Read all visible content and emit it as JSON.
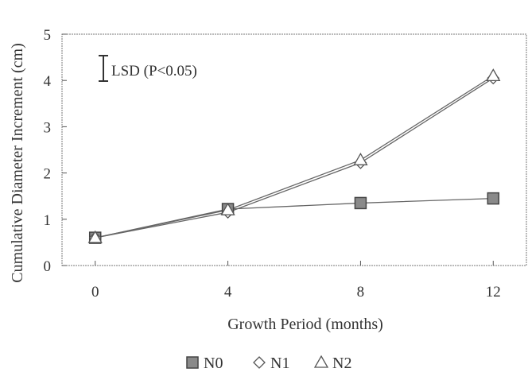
{
  "chart_data": {
    "type": "line",
    "xlabel": "Growth Period (months)",
    "ylabel": "Cumulative Diameter Increment (cm)",
    "x": [
      0,
      4,
      8,
      12
    ],
    "xticks": [
      "0",
      "4",
      "8",
      "12"
    ],
    "yticks": [
      "0",
      "1",
      "2",
      "3",
      "4",
      "5"
    ],
    "xlim": [
      -1,
      13
    ],
    "ylim": [
      0,
      5
    ],
    "grid": false,
    "legend_position": "bottom",
    "series": [
      {
        "name": "N0",
        "marker": "square",
        "values": [
          0.6,
          1.22,
          1.35,
          1.45
        ]
      },
      {
        "name": "N1",
        "marker": "diamond",
        "values": [
          0.6,
          1.15,
          2.22,
          4.05
        ]
      },
      {
        "name": "N2",
        "marker": "triangle",
        "values": [
          0.6,
          1.2,
          2.28,
          4.1
        ]
      }
    ],
    "annotation": {
      "text": "LSD (P<0.05)",
      "lsd_value": 0.55
    },
    "colors": {
      "line": "#666666",
      "marker_fill_n0": "#8a8a8a",
      "text": "#333333"
    }
  }
}
